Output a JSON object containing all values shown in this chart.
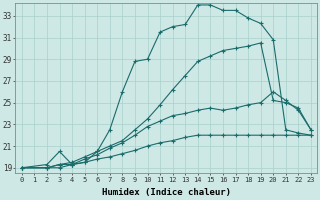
{
  "xlabel": "Humidex (Indice chaleur)",
  "bg_color": "#cde8e5",
  "grid_color": "#a8d0cc",
  "line_color": "#1a6b6b",
  "xlim": [
    -0.5,
    23.5
  ],
  "ylim": [
    18.5,
    34.2
  ],
  "xticks": [
    0,
    1,
    2,
    3,
    4,
    5,
    6,
    7,
    8,
    9,
    10,
    11,
    12,
    13,
    14,
    15,
    16,
    17,
    18,
    19,
    20,
    21,
    22,
    23
  ],
  "yticks": [
    19,
    21,
    23,
    25,
    27,
    29,
    31,
    33
  ],
  "line1_x": [
    0,
    2,
    3,
    4,
    5,
    6,
    7,
    8,
    9,
    10,
    11,
    12,
    13,
    14,
    15,
    16,
    17,
    18,
    19,
    20,
    21,
    22,
    23
  ],
  "line1_y": [
    19,
    19.3,
    20.5,
    19.3,
    19.5,
    20.5,
    22.5,
    26.0,
    28.8,
    29.0,
    31.5,
    32.0,
    32.2,
    34.0,
    34.0,
    33.5,
    33.5,
    32.8,
    32.3,
    30.8,
    22.5,
    22.2,
    22.0
  ],
  "line2_x": [
    0,
    2,
    3,
    4,
    5,
    6,
    7,
    8,
    9,
    10,
    11,
    12,
    13,
    14,
    15,
    16,
    17,
    18,
    19,
    20,
    21,
    22,
    23
  ],
  "line2_y": [
    19,
    19,
    19,
    19.3,
    19.5,
    19.8,
    20.0,
    20.3,
    20.6,
    21.0,
    21.3,
    21.5,
    21.8,
    22.0,
    22.0,
    22.0,
    22.0,
    22.0,
    22.0,
    22.0,
    22.0,
    22.0,
    22.0
  ],
  "line3_x": [
    0,
    2,
    3,
    4,
    5,
    6,
    7,
    8,
    9,
    10,
    11,
    12,
    13,
    14,
    15,
    16,
    17,
    18,
    19,
    20,
    21,
    22,
    23
  ],
  "line3_y": [
    19,
    19,
    19.3,
    19.3,
    19.8,
    20.2,
    20.8,
    21.3,
    22.0,
    22.8,
    23.3,
    23.8,
    24.0,
    24.3,
    24.5,
    24.3,
    24.5,
    24.8,
    25.0,
    26.0,
    25.2,
    24.3,
    22.5
  ],
  "line4_x": [
    0,
    2,
    3,
    4,
    5,
    6,
    7,
    8,
    9,
    10,
    11,
    12,
    13,
    14,
    15,
    16,
    17,
    18,
    19,
    20,
    21,
    22,
    23
  ],
  "line4_y": [
    19,
    19,
    19.3,
    19.5,
    20.0,
    20.5,
    21.0,
    21.5,
    22.5,
    23.5,
    24.8,
    26.2,
    27.5,
    28.8,
    29.3,
    29.8,
    30.0,
    30.2,
    30.5,
    25.2,
    25.0,
    24.5,
    22.5
  ]
}
